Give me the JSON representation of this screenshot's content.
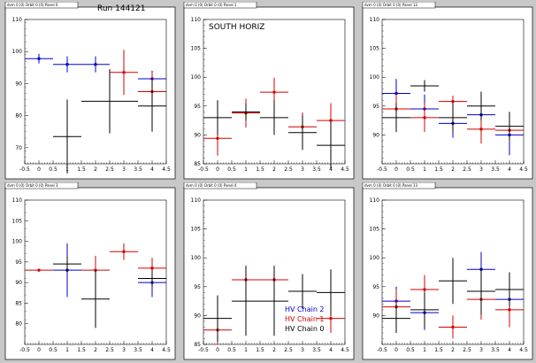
{
  "colors": {
    "chain0": "#000000",
    "chain1": "#d40000",
    "chain2": "#0000c8",
    "frame_bg": "#ffffff",
    "canvas_bg": "#c8c8c8"
  },
  "chart_data": [
    {
      "type": "scatter",
      "title": "dvm 0 (0) Orbit 0 (0) Panel 0",
      "annotation": "Run 144121",
      "xlim": [
        -0.5,
        4.5
      ],
      "ylim": [
        65,
        110
      ],
      "xticks": [
        "-0.5",
        "0",
        "0.5",
        "1",
        "1.5",
        "2",
        "2.5",
        "3",
        "3.5",
        "4",
        "4.5"
      ],
      "yticks": [
        "70",
        "80",
        "90",
        "100",
        "110"
      ],
      "series": [
        {
          "color": "chain2",
          "points": [
            [
              0,
              97.8,
              0.5,
              1.5
            ],
            [
              1,
              96,
              0.5,
              2.5
            ],
            [
              2,
              96,
              0.5,
              2.5
            ],
            [
              4,
              91.5,
              0.5,
              2.5
            ]
          ]
        },
        {
          "color": "chain1",
          "points": [
            [
              3,
              93.5,
              0.5,
              7
            ],
            [
              4,
              87.5,
              0.5,
              6
            ]
          ]
        },
        {
          "color": "chain0",
          "points": [
            [
              1,
              73.5,
              0.5,
              11.5
            ],
            [
              2.5,
              84.5,
              1,
              10
            ],
            [
              4,
              83,
              0.5,
              8
            ]
          ]
        }
      ]
    },
    {
      "type": "scatter",
      "title": "dvm 0 (0) Orbit 0 (0) Panel 1",
      "annotation": "SOUTH HORIZ",
      "xlim": [
        -0.5,
        4.5
      ],
      "ylim": [
        85,
        110
      ],
      "xticks": [
        "-0.5",
        "0",
        "0.5",
        "1",
        "1.5",
        "2",
        "2.5",
        "3",
        "3.5",
        "4",
        "4.5"
      ],
      "yticks": [
        "85",
        "90",
        "95",
        "100",
        "105",
        "110"
      ],
      "series": [
        {
          "color": "chain1",
          "points": [
            [
              0,
              89.4,
              0.5,
              3
            ],
            [
              1,
              93.8,
              0.5,
              2.5
            ],
            [
              2,
              97.4,
              0.5,
              2.5
            ],
            [
              3,
              91.4,
              0.5,
              2.5
            ],
            [
              4,
              92.5,
              0.5,
              3
            ]
          ]
        },
        {
          "color": "chain0",
          "points": [
            [
              0,
              93,
              0.5,
              3
            ],
            [
              1,
              94,
              0.5,
              1.5
            ],
            [
              2,
              93,
              0.5,
              3
            ],
            [
              3,
              90.4,
              0.5,
              3
            ],
            [
              4,
              88.2,
              0.5,
              4
            ]
          ]
        }
      ]
    },
    {
      "type": "scatter",
      "title": "dvm 0 (0) Orbit 0 (0) Panel 12",
      "annotation": "",
      "xlim": [
        -0.5,
        4.5
      ],
      "ylim": [
        85,
        110
      ],
      "xticks": [
        "-0.5",
        "0",
        "0.5",
        "1",
        "1.5",
        "2",
        "2.5",
        "3",
        "3.5",
        "4",
        "4.5"
      ],
      "yticks": [
        "90",
        "95",
        "100",
        "105",
        "110"
      ],
      "series": [
        {
          "color": "chain2",
          "points": [
            [
              0,
              97.2,
              0.5,
              2.5
            ],
            [
              1,
              94.5,
              0.5,
              2.5
            ],
            [
              2,
              92,
              0.5,
              2.5
            ],
            [
              3,
              93.5,
              0.5,
              2.5
            ],
            [
              4,
              90,
              0.5,
              3.5
            ]
          ]
        },
        {
          "color": "chain1",
          "points": [
            [
              0,
              94.5,
              0.5,
              2.5
            ],
            [
              1,
              93,
              0.5,
              2.5
            ],
            [
              2,
              95.8,
              0.5,
              1
            ],
            [
              3,
              91,
              0.5,
              2.5
            ],
            [
              4,
              90.8,
              0.5,
              2
            ]
          ]
        },
        {
          "color": "chain0",
          "points": [
            [
              0,
              93,
              0.5,
              2.5
            ],
            [
              1,
              98.5,
              0.5,
              1
            ],
            [
              2,
              93,
              0.5,
              2.5
            ],
            [
              3,
              95,
              0.5,
              2.5
            ],
            [
              4,
              91.5,
              0.5,
              2.5
            ]
          ]
        }
      ]
    },
    {
      "type": "scatter",
      "title": "dvm 0 (0) Orbit 0 (0) Panel 3",
      "annotation": "",
      "xlim": [
        -0.5,
        4.5
      ],
      "ylim": [
        75,
        110
      ],
      "xticks": [
        "-0.5",
        "0",
        "0.5",
        "1",
        "1.5",
        "2",
        "2.5",
        "3",
        "3.5",
        "4",
        "4.5"
      ],
      "yticks": [
        "80",
        "85",
        "90",
        "95",
        "100",
        "105",
        "110"
      ],
      "series": [
        {
          "color": "chain2",
          "points": [
            [
              1,
              93,
              0.5,
              6.5
            ],
            [
              4,
              90,
              0.5,
              3.5
            ]
          ]
        },
        {
          "color": "chain1",
          "points": [
            [
              0,
              93,
              0.5,
              0
            ],
            [
              2,
              93,
              0.5,
              3.5
            ],
            [
              3,
              97.5,
              0.5,
              2
            ],
            [
              4,
              93.5,
              0.5,
              2.5
            ]
          ]
        },
        {
          "color": "chain0",
          "points": [
            [
              1,
              94.5,
              0.5,
              2
            ],
            [
              2,
              86,
              0.5,
              7
            ],
            [
              4,
              91,
              0.5,
              2
            ]
          ]
        }
      ]
    },
    {
      "type": "scatter",
      "title": "dvm 0 (0) Orbit 0 (0) Panel 4",
      "annotation": "",
      "xlim": [
        -0.5,
        4.5
      ],
      "ylim": [
        85,
        110
      ],
      "xticks": [
        "-0.5",
        "0",
        "0.5",
        "1",
        "1.5",
        "2",
        "2.5",
        "3",
        "3.5",
        "4",
        "4.5"
      ],
      "yticks": [
        "85",
        "90",
        "95",
        "100",
        "105",
        "110"
      ],
      "legend": [
        "HV Chain 2",
        "HV Chain 1",
        "HV Chain 0"
      ],
      "series": [
        {
          "color": "chain1",
          "points": [
            [
              0,
              87.5,
              0.5,
              2.5
            ],
            [
              1,
              96.2,
              0.5,
              2.5
            ],
            [
              2,
              96.2,
              0.5,
              2.5
            ],
            [
              4,
              89.5,
              0.5,
              2.5
            ]
          ]
        },
        {
          "color": "chain0",
          "points": [
            [
              0,
              89.5,
              0.5,
              4
            ],
            [
              1,
              92.5,
              0.5,
              6
            ],
            [
              2,
              92.5,
              0.5,
              6
            ],
            [
              3,
              94.2,
              0.5,
              3
            ],
            [
              4,
              94,
              0.5,
              4
            ]
          ]
        }
      ]
    },
    {
      "type": "scatter",
      "title": "dvm 0 (0) Orbit 0 (0) Panel 13",
      "annotation": "",
      "xlim": [
        -0.5,
        4.5
      ],
      "ylim": [
        85,
        110
      ],
      "xticks": [
        "-0.5",
        "0",
        "0.5",
        "1",
        "1.5",
        "2",
        "2.5",
        "3",
        "3.5",
        "4",
        "4.5"
      ],
      "yticks": [
        "90",
        "95",
        "100",
        "105",
        "110"
      ],
      "series": [
        {
          "color": "chain2",
          "points": [
            [
              0,
              92.5,
              0.5,
              2.5
            ],
            [
              1,
              90.5,
              0.5,
              3
            ],
            [
              3,
              98,
              0.5,
              3
            ],
            [
              4,
              92.8,
              0.5,
              3
            ]
          ]
        },
        {
          "color": "chain1",
          "points": [
            [
              0,
              91.5,
              0.5,
              3
            ],
            [
              1,
              94.5,
              0.5,
              2.5
            ],
            [
              2,
              88,
              0.5,
              2
            ],
            [
              3,
              92.8,
              0.5,
              3.5
            ],
            [
              4,
              91,
              0.5,
              3
            ]
          ]
        },
        {
          "color": "chain0",
          "points": [
            [
              0,
              89.5,
              0.5,
              2.5
            ],
            [
              1,
              91,
              0.5,
              3
            ],
            [
              2,
              96,
              0.5,
              4
            ],
            [
              3,
              94.2,
              0.5,
              4
            ],
            [
              4,
              94.5,
              0.5,
              3
            ]
          ]
        }
      ]
    }
  ]
}
